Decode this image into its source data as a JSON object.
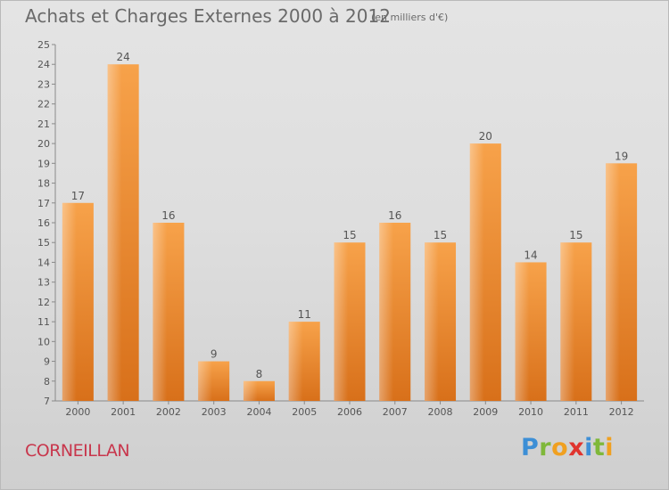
{
  "chart_data": {
    "type": "bar",
    "title": "Achats et Charges Externes 2000 à 2012",
    "subtitle": "(en milliers d'€)",
    "categories": [
      "2000",
      "2001",
      "2002",
      "2003",
      "2004",
      "2005",
      "2006",
      "2007",
      "2008",
      "2009",
      "2010",
      "2011",
      "2012"
    ],
    "values": [
      17,
      24,
      16,
      9,
      8,
      11,
      15,
      16,
      15,
      20,
      14,
      15,
      19
    ],
    "ylim": [
      7,
      25
    ],
    "yticks": [
      7,
      8,
      9,
      10,
      11,
      12,
      13,
      14,
      15,
      16,
      17,
      18,
      19,
      20,
      21,
      22,
      23,
      24,
      25
    ],
    "grid": false,
    "bar_color": "#f08a2c"
  },
  "footer": {
    "commune": "CORNEILLAN",
    "brand": "Proxiti",
    "brand_letters": [
      "P",
      "r",
      "o",
      "x",
      "i",
      "t",
      "i"
    ],
    "brand_colors": [
      "#3d8fd6",
      "#7fb83a",
      "#f0a020",
      "#e0342e",
      "#3d8fd6",
      "#7fb83a",
      "#f0a020"
    ]
  }
}
